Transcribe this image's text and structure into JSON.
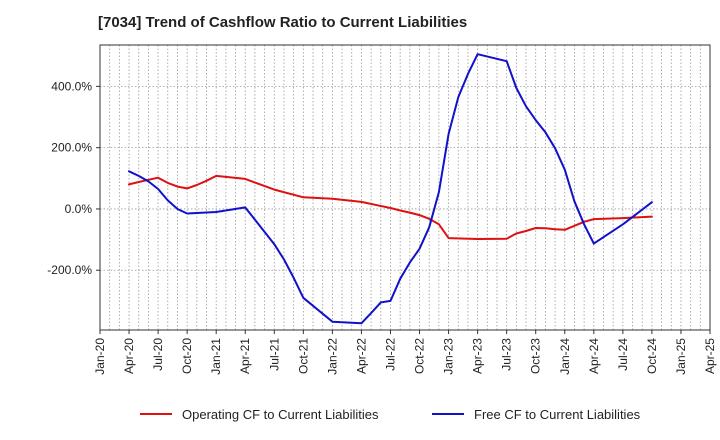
{
  "chart_data": {
    "type": "line",
    "title": "[7034]  Trend of Cashflow Ratio to Current Liabilities",
    "xlabel": "",
    "ylabel": "",
    "x_ticks": [
      "Jan-20",
      "Apr-20",
      "Jul-20",
      "Oct-20",
      "Jan-21",
      "Apr-21",
      "Jul-21",
      "Oct-21",
      "Jan-22",
      "Apr-22",
      "Jul-22",
      "Oct-22",
      "Jan-23",
      "Apr-23",
      "Jul-23",
      "Oct-23",
      "Jan-24",
      "Apr-24",
      "Jul-24",
      "Oct-24",
      "Jan-25",
      "Apr-25"
    ],
    "y_ticks": [
      {
        "value": 400,
        "label": "400.0%"
      },
      {
        "value": 200,
        "label": "200.0%"
      },
      {
        "value": 0,
        "label": "0.0%"
      },
      {
        "value": -200,
        "label": "-200.0%"
      }
    ],
    "ylim": [
      -395,
      535
    ],
    "grid": true,
    "legend_position": "bottom",
    "series": [
      {
        "name": "Operating CF to Current Liabilities",
        "color": "#dd1111",
        "points": [
          [
            "2020-04",
            80
          ],
          [
            "2020-05",
            88
          ],
          [
            "2020-06",
            95
          ],
          [
            "2020-07",
            102
          ],
          [
            "2020-08",
            85
          ],
          [
            "2020-09",
            73
          ],
          [
            "2020-10",
            67
          ],
          [
            "2020-11",
            78
          ],
          [
            "2020-12",
            92
          ],
          [
            "2021-01",
            108
          ],
          [
            "2021-04",
            98
          ],
          [
            "2021-07",
            63
          ],
          [
            "2021-10",
            38
          ],
          [
            "2022-01",
            33
          ],
          [
            "2022-04",
            23
          ],
          [
            "2022-07",
            3
          ],
          [
            "2022-08",
            -5
          ],
          [
            "2022-09",
            -12
          ],
          [
            "2022-10",
            -20
          ],
          [
            "2022-11",
            -32
          ],
          [
            "2022-12",
            -50
          ],
          [
            "2023-01",
            -95
          ],
          [
            "2023-04",
            -98
          ],
          [
            "2023-07",
            -97
          ],
          [
            "2023-08",
            -80
          ],
          [
            "2023-09",
            -72
          ],
          [
            "2023-10",
            -62
          ],
          [
            "2023-11",
            -63
          ],
          [
            "2023-12",
            -66
          ],
          [
            "2024-01",
            -68
          ],
          [
            "2024-02",
            -55
          ],
          [
            "2024-03",
            -42
          ],
          [
            "2024-04",
            -33
          ],
          [
            "2024-07",
            -30
          ],
          [
            "2024-10",
            -25
          ]
        ]
      },
      {
        "name": "Free CF to Current Liabilities",
        "color": "#1111cc",
        "points": [
          [
            "2020-04",
            123
          ],
          [
            "2020-05",
            108
          ],
          [
            "2020-06",
            90
          ],
          [
            "2020-07",
            65
          ],
          [
            "2020-08",
            28
          ],
          [
            "2020-09",
            0
          ],
          [
            "2020-10",
            -15
          ],
          [
            "2021-01",
            -10
          ],
          [
            "2021-04",
            5
          ],
          [
            "2021-07",
            -115
          ],
          [
            "2021-08",
            -165
          ],
          [
            "2021-09",
            -225
          ],
          [
            "2021-10",
            -290
          ],
          [
            "2022-01",
            -368
          ],
          [
            "2022-04",
            -373
          ],
          [
            "2022-05",
            -340
          ],
          [
            "2022-06",
            -305
          ],
          [
            "2022-07",
            -300
          ],
          [
            "2022-08",
            -228
          ],
          [
            "2022-09",
            -175
          ],
          [
            "2022-10",
            -130
          ],
          [
            "2022-11",
            -60
          ],
          [
            "2022-12",
            55
          ],
          [
            "2023-01",
            245
          ],
          [
            "2023-02",
            365
          ],
          [
            "2023-03",
            440
          ],
          [
            "2023-04",
            505
          ],
          [
            "2023-07",
            482
          ],
          [
            "2023-08",
            395
          ],
          [
            "2023-09",
            335
          ],
          [
            "2023-10",
            290
          ],
          [
            "2023-11",
            250
          ],
          [
            "2023-12",
            198
          ],
          [
            "2024-01",
            128
          ],
          [
            "2024-02",
            25
          ],
          [
            "2024-03",
            -50
          ],
          [
            "2024-04",
            -113
          ],
          [
            "2024-07",
            -50
          ],
          [
            "2024-10",
            22
          ]
        ]
      }
    ]
  }
}
